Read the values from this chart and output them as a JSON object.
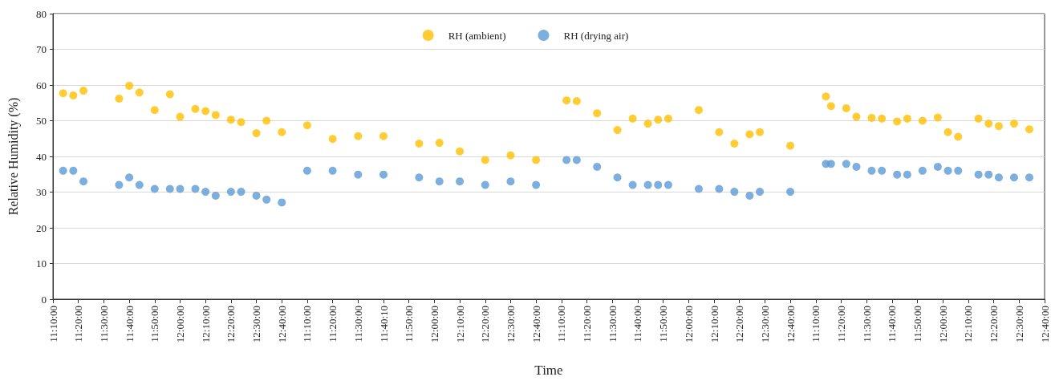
{
  "chart_data": {
    "type": "scatter",
    "xlabel": "Time",
    "ylabel": "Relative Humidity (%)",
    "categories": [
      "11:10:00",
      null,
      null,
      null,
      null,
      "11:20:00",
      null,
      null,
      null,
      null,
      "11:30:00",
      null,
      null,
      null,
      null,
      "11:40:00",
      null,
      null,
      null,
      null,
      "11:50:00",
      null,
      null,
      null,
      null,
      "12:00:00",
      null,
      null,
      null,
      null,
      "12:10:00",
      null,
      null,
      null,
      null,
      "12:20:00",
      null,
      null,
      null,
      null,
      "12:30:00",
      null,
      null,
      null,
      null,
      "12:40:00",
      null,
      null,
      null,
      null,
      "11:10:00",
      null,
      null,
      null,
      null,
      "11:20:00",
      null,
      null,
      null,
      null,
      "11:30:00",
      null,
      null,
      null,
      null,
      "11:40:10",
      null,
      null,
      null,
      null,
      "11:50:00",
      null,
      null,
      null,
      null,
      "12:00:00",
      null,
      null,
      null,
      null,
      "12:10:00",
      null,
      null,
      null,
      null,
      "12:20:00",
      null,
      null,
      null,
      null,
      "12:30:00",
      null,
      null,
      null,
      null,
      "12:40:00",
      null,
      null,
      null,
      null,
      "11:10:00",
      null,
      null,
      null,
      null,
      "11:20:00",
      null,
      null,
      null,
      null,
      "11:30:00",
      null,
      null,
      null,
      null,
      "11:40:00",
      null,
      null,
      null,
      null,
      "11:50:00",
      null,
      null,
      null,
      null,
      "12:00:00",
      null,
      null,
      null,
      null,
      "12:10:00",
      null,
      null,
      null,
      null,
      "12:20:00",
      null,
      null,
      null,
      null,
      "12:30:00",
      null,
      null,
      null,
      null,
      "12:40:00",
      null,
      null,
      null,
      null,
      "11:10:00",
      null,
      null,
      null,
      null,
      "11:20:00",
      null,
      null,
      null,
      null,
      "11:30:00",
      null,
      null,
      null,
      null,
      "11:40:00",
      null,
      null,
      null,
      null,
      "11:50:00",
      null,
      null,
      null,
      null,
      "12:00:00",
      null,
      null,
      null,
      null,
      "12:10:00",
      null,
      null,
      null,
      null,
      "12:20:00",
      null,
      null,
      null,
      null,
      "12:30:00",
      null,
      null,
      null,
      null,
      "12:40:00"
    ],
    "series": [
      {
        "name": "RH (ambient)",
        "color": "#ffc000",
        "values": [
          null,
          null,
          57.7,
          null,
          57.1,
          null,
          58.4,
          null,
          null,
          null,
          null,
          null,
          null,
          56.2,
          null,
          59.8,
          null,
          57.9,
          null,
          null,
          53.0,
          null,
          null,
          57.4,
          null,
          51.1,
          null,
          null,
          53.3,
          null,
          52.7,
          null,
          51.6,
          null,
          null,
          50.3,
          null,
          49.6,
          null,
          null,
          46.5,
          null,
          50.0,
          null,
          null,
          46.8,
          null,
          null,
          null,
          null,
          48.7,
          null,
          null,
          null,
          null,
          44.9,
          null,
          null,
          null,
          null,
          45.7,
          null,
          null,
          null,
          null,
          45.7,
          null,
          null,
          null,
          null,
          null,
          null,
          43.6,
          null,
          null,
          null,
          43.8,
          null,
          null,
          null,
          41.4,
          null,
          null,
          null,
          null,
          39.0,
          null,
          null,
          null,
          null,
          40.3,
          null,
          null,
          null,
          null,
          39.0,
          null,
          null,
          null,
          null,
          null,
          55.7,
          null,
          55.5,
          null,
          null,
          null,
          52.1,
          null,
          null,
          null,
          47.4,
          null,
          null,
          50.6,
          null,
          null,
          49.2,
          null,
          50.3,
          null,
          50.6,
          null,
          null,
          null,
          null,
          null,
          53.0,
          null,
          null,
          null,
          46.8,
          null,
          null,
          43.6,
          null,
          null,
          46.2,
          null,
          46.8,
          null,
          null,
          null,
          null,
          null,
          43.0,
          null,
          null,
          null,
          null,
          null,
          null,
          56.8,
          54.1,
          null,
          null,
          53.5,
          null,
          51.1,
          null,
          null,
          50.8,
          null,
          50.6,
          null,
          null,
          49.8,
          null,
          50.6,
          null,
          null,
          50.0,
          null,
          null,
          50.9,
          null,
          46.8,
          null,
          45.5,
          null,
          null,
          null,
          50.6,
          null,
          49.2,
          null,
          48.5,
          null,
          null,
          49.2,
          null,
          null,
          47.6,
          null,
          null,
          null
        ]
      },
      {
        "name": "RH (drying air)",
        "color": "#5b9bd5",
        "values": [
          null,
          null,
          36.0,
          null,
          36.0,
          null,
          33.0,
          null,
          null,
          null,
          null,
          null,
          null,
          32.0,
          null,
          34.1,
          null,
          32.0,
          null,
          null,
          30.9,
          null,
          null,
          30.9,
          null,
          30.9,
          null,
          null,
          30.9,
          null,
          30.1,
          null,
          29.0,
          null,
          null,
          30.1,
          null,
          30.1,
          null,
          null,
          29.0,
          null,
          27.9,
          null,
          null,
          27.1,
          null,
          null,
          null,
          null,
          36.0,
          null,
          null,
          null,
          null,
          36.0,
          null,
          null,
          null,
          null,
          34.9,
          null,
          null,
          null,
          null,
          34.9,
          null,
          null,
          null,
          null,
          null,
          null,
          34.1,
          null,
          null,
          null,
          33.0,
          null,
          null,
          null,
          33.0,
          null,
          null,
          null,
          null,
          32.0,
          null,
          null,
          null,
          null,
          33.0,
          null,
          null,
          null,
          null,
          32.0,
          null,
          null,
          null,
          null,
          null,
          39.0,
          null,
          39.0,
          null,
          null,
          null,
          37.1,
          null,
          null,
          null,
          34.1,
          null,
          null,
          32.0,
          null,
          null,
          32.0,
          null,
          32.0,
          null,
          32.0,
          null,
          null,
          null,
          null,
          null,
          30.9,
          null,
          null,
          null,
          30.9,
          null,
          null,
          30.1,
          null,
          null,
          29.0,
          null,
          30.1,
          null,
          null,
          null,
          null,
          null,
          30.1,
          null,
          null,
          null,
          null,
          null,
          null,
          37.9,
          37.9,
          null,
          null,
          37.9,
          null,
          37.1,
          null,
          null,
          36.0,
          null,
          36.0,
          null,
          null,
          34.9,
          null,
          34.9,
          null,
          null,
          36.0,
          null,
          null,
          37.1,
          null,
          36.0,
          null,
          36.0,
          null,
          null,
          null,
          34.9,
          null,
          34.9,
          null,
          34.1,
          null,
          null,
          34.1,
          null,
          null,
          34.1,
          null,
          null,
          null
        ]
      }
    ],
    "ylim": [
      0,
      80
    ],
    "yticks": [
      0,
      10,
      20,
      30,
      40,
      50,
      60,
      70,
      80
    ],
    "grid": "y",
    "legend": "top",
    "marker": "circle"
  }
}
